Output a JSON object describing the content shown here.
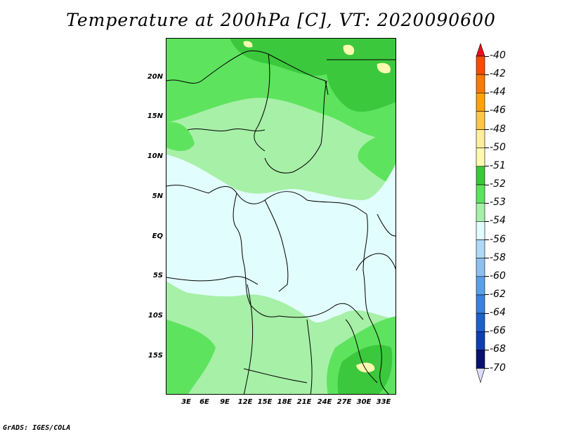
{
  "title": "Temperature at 200hPa [C], VT: 2020090600",
  "credit": "GrADS: IGES/COLA",
  "map": {
    "lat_labels": [
      "20N",
      "15N",
      "10N",
      "5N",
      "EQ",
      "5S",
      "10S",
      "15S"
    ],
    "lon_labels": [
      "3E",
      "6E",
      "9E",
      "12E",
      "15E",
      "18E",
      "21E",
      "24E",
      "27E",
      "30E",
      "33E"
    ]
  },
  "colorbar": {
    "levels": [
      "-40",
      "-42",
      "-44",
      "-46",
      "-48",
      "-50",
      "-51",
      "-52",
      "-53",
      "-54",
      "-56",
      "-58",
      "-60",
      "-62",
      "-64",
      "-66",
      "-68",
      "-70"
    ],
    "colors": [
      "#e8101a",
      "#ff4a00",
      "#ff7a00",
      "#ffa400",
      "#ffc840",
      "#ffeea0",
      "#fffaaf",
      "#3cc83c",
      "#5ee35e",
      "#a7f0a7",
      "#e2fdfd",
      "#aed9f8",
      "#8cc0f0",
      "#5aa0e6",
      "#3c82dc",
      "#1e5fcc",
      "#0e3fb0",
      "#08126e",
      "#dcdcf8"
    ]
  }
}
